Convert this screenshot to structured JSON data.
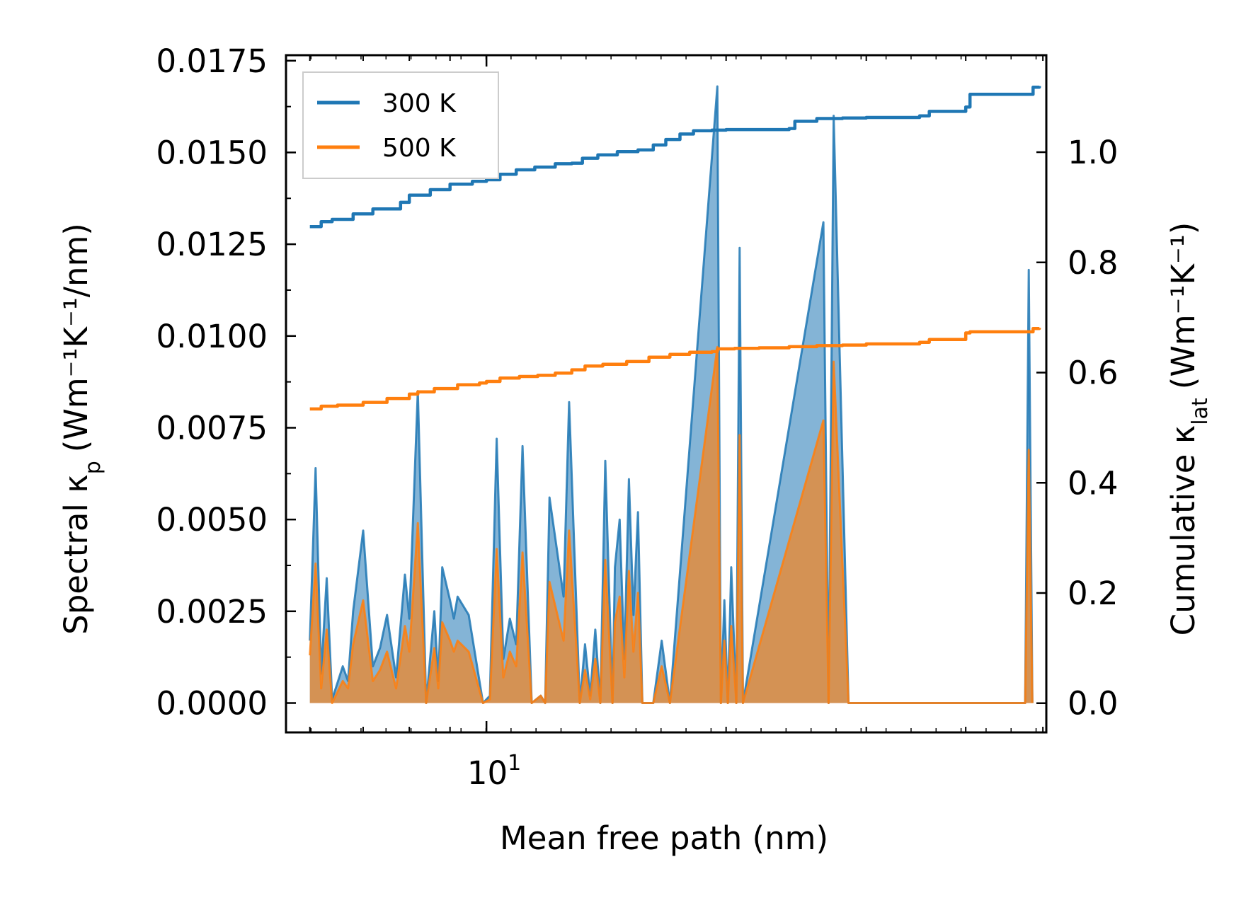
{
  "chart_data": {
    "type": "line",
    "title": "",
    "xlabel": "Mean free path (nm)",
    "xscale": "log",
    "xlim": [
      5.6,
      50.5
    ],
    "xticks": [
      {
        "value": 10,
        "label": "10",
        "exponent": "1"
      }
    ],
    "ylabel_left": {
      "main": "Spectral κ",
      "sub": "p",
      "unit": "(Wm⁻¹K⁻¹/nm)"
    },
    "ylim_left": [
      -0.0008,
      0.01765
    ],
    "yticks_left": [
      "0.0000",
      "0.0025",
      "0.0050",
      "0.0075",
      "0.0100",
      "0.0125",
      "0.0150",
      "0.0175"
    ],
    "ylabel_right": {
      "main": "Cumulative κ",
      "sub": "lat",
      "unit": "(Wm⁻¹K⁻¹)"
    },
    "ylim_right": [
      -0.053,
      1.176
    ],
    "yticks_right": [
      "0.0",
      "0.2",
      "0.4",
      "0.6",
      "0.8",
      "1.0"
    ],
    "legend": {
      "position": "top-left",
      "entries": [
        {
          "label": "300 K",
          "color": "#1f77b4"
        },
        {
          "label": "500 K",
          "color": "#ff7f0e"
        }
      ]
    },
    "series": [
      {
        "name": "300 K",
        "color": "#1f77b4",
        "cumulative": {
          "x": [
            6.0,
            6.2,
            6.4,
            6.8,
            7.2,
            7.8,
            8.0,
            8.5,
            9.0,
            9.6,
            10.0,
            10.4,
            10.9,
            11.5,
            12.2,
            12.8,
            13.2,
            13.8,
            14.6,
            15.5,
            16.2,
            16.8,
            17.5,
            18.2,
            19.2,
            20.0,
            24.0,
            24.4,
            26.0,
            28.0,
            30.0,
            35.0,
            36.0,
            40.0,
            40.5,
            48.0,
            48.6,
            49.5
          ],
          "y": [
            0.865,
            0.874,
            0.878,
            0.888,
            0.897,
            0.909,
            0.922,
            0.932,
            0.942,
            0.947,
            0.95,
            0.96,
            0.968,
            0.973,
            0.979,
            0.98,
            0.989,
            0.995,
            1.001,
            1.004,
            1.013,
            1.023,
            1.033,
            1.039,
            1.04,
            1.041,
            1.043,
            1.056,
            1.061,
            1.062,
            1.063,
            1.066,
            1.074,
            1.082,
            1.105,
            1.105,
            1.118,
            1.12
          ]
        },
        "spectral": {
          "x": [
            6.0,
            6.1,
            6.2,
            6.3,
            6.4,
            6.6,
            6.7,
            6.8,
            7.0,
            7.2,
            7.35,
            7.5,
            7.7,
            7.9,
            8.0,
            8.2,
            8.4,
            8.6,
            8.7,
            8.8,
            9.0,
            9.1,
            9.2,
            9.5,
            9.9,
            10.1,
            10.3,
            10.5,
            10.7,
            10.9,
            11.1,
            11.4,
            11.7,
            11.85,
            12.0,
            12.5,
            12.7,
            13.1,
            13.3,
            13.5,
            13.7,
            13.9,
            14.1,
            14.4,
            14.5,
            14.7,
            14.9,
            15.1,
            15.3,
            15.5,
            15.7,
            15.9,
            16.2,
            16.6,
            17.0,
            19.5,
            19.7,
            19.9,
            20.1,
            20.3,
            20.6,
            20.8,
            21.0,
            26.5,
            26.9,
            27.3,
            28.5,
            29.5,
            29.8,
            30.5,
            31.0,
            31.5,
            32.0,
            32.5,
            33.0,
            35.5,
            36.0,
            36.5,
            37.0,
            47.5,
            48.0,
            48.5
          ],
          "y": [
            0.0017,
            0.0064,
            0.0008,
            0.0034,
            0.0001,
            0.001,
            0.0006,
            0.0025,
            0.0047,
            0.001,
            0.0015,
            0.0024,
            0.0007,
            0.0035,
            0.0023,
            0.0085,
            0.0,
            0.0025,
            0.0006,
            0.0037,
            0.0028,
            0.0023,
            0.0029,
            0.0024,
            0.0,
            0.0002,
            0.0072,
            0.0012,
            0.0023,
            0.0016,
            0.007,
            0.0,
            0.0002,
            0.0,
            0.0056,
            0.0029,
            0.0082,
            0.0,
            0.0016,
            0.0002,
            0.002,
            0.0,
            0.0066,
            0.0,
            0.0037,
            0.005,
            0.0012,
            0.0061,
            0.0024,
            0.0052,
            0.0,
            0.0,
            0.0,
            0.0017,
            0.0,
            0.0168,
            0.0,
            0.0028,
            0.0,
            0.0037,
            0.0,
            0.0124,
            0.0,
            0.0131,
            0.0,
            0.016,
            0.0,
            0.0,
            0.0,
            0.0,
            0.0,
            0.0,
            0.0,
            0.0,
            0.0,
            0.0,
            0.0,
            0.0,
            0.0,
            0.0,
            0.0118,
            0.0
          ]
        }
      },
      {
        "name": "500 K",
        "color": "#ff7f0e",
        "cumulative": {
          "x": [
            6.0,
            6.2,
            6.5,
            7.0,
            7.5,
            8.0,
            8.2,
            8.6,
            9.2,
            9.8,
            10.0,
            10.4,
            11.0,
            11.6,
            12.2,
            12.8,
            13.3,
            14.0,
            15.0,
            16.0,
            17.0,
            18.0,
            19.2,
            19.5,
            20.5,
            22.0,
            24.0,
            26.0,
            28.0,
            30.0,
            35.0,
            36.0,
            40.0,
            40.5,
            48.0,
            48.6,
            49.5
          ],
          "y": [
            0.534,
            0.539,
            0.541,
            0.546,
            0.553,
            0.561,
            0.565,
            0.571,
            0.578,
            0.581,
            0.584,
            0.59,
            0.593,
            0.595,
            0.599,
            0.605,
            0.612,
            0.615,
            0.62,
            0.628,
            0.633,
            0.637,
            0.638,
            0.643,
            0.644,
            0.645,
            0.647,
            0.649,
            0.65,
            0.652,
            0.655,
            0.66,
            0.672,
            0.674,
            0.674,
            0.68,
            0.681
          ]
        },
        "spectral": {
          "x": [
            6.0,
            6.1,
            6.2,
            6.3,
            6.4,
            6.6,
            6.7,
            6.8,
            7.0,
            7.2,
            7.35,
            7.5,
            7.7,
            7.9,
            8.0,
            8.2,
            8.4,
            8.6,
            8.7,
            8.8,
            9.0,
            9.1,
            9.2,
            9.5,
            9.9,
            10.1,
            10.3,
            10.5,
            10.7,
            10.9,
            11.1,
            11.4,
            11.7,
            11.85,
            12.0,
            12.5,
            12.7,
            13.1,
            13.3,
            13.5,
            13.7,
            13.9,
            14.1,
            14.4,
            14.5,
            14.7,
            14.9,
            15.1,
            15.3,
            15.5,
            15.7,
            15.9,
            16.2,
            16.6,
            17.0,
            19.5,
            19.7,
            19.9,
            20.1,
            20.3,
            20.6,
            20.8,
            21.0,
            26.5,
            26.9,
            27.3,
            28.5,
            29.5,
            29.8,
            30.5,
            31.0,
            31.5,
            32.0,
            32.5,
            33.0,
            35.5,
            36.0,
            36.5,
            37.0,
            47.5,
            48.0,
            48.5
          ],
          "y": [
            0.0013,
            0.0038,
            0.0004,
            0.002,
            0.0,
            0.0006,
            0.0004,
            0.0016,
            0.0028,
            0.0006,
            0.0009,
            0.0014,
            0.0004,
            0.0021,
            0.0014,
            0.0049,
            0.0,
            0.0015,
            0.0004,
            0.0022,
            0.0017,
            0.0014,
            0.0017,
            0.0014,
            0.0,
            0.0001,
            0.0042,
            0.0007,
            0.0014,
            0.001,
            0.0041,
            0.0,
            0.0002,
            0.0,
            0.0033,
            0.0017,
            0.0047,
            0.0,
            0.0009,
            0.0001,
            0.0012,
            0.0,
            0.0039,
            0.0,
            0.0022,
            0.0029,
            0.0007,
            0.0036,
            0.0014,
            0.003,
            0.0,
            0.0,
            0.0,
            0.001,
            0.0,
            0.0097,
            0.0,
            0.0017,
            0.0,
            0.0021,
            0.0,
            0.0073,
            0.0,
            0.0077,
            0.0,
            0.0093,
            0.0,
            0.0,
            0.0,
            0.0,
            0.0,
            0.0,
            0.0,
            0.0,
            0.0,
            0.0,
            0.0,
            0.0,
            0.0,
            0.0,
            0.0069,
            0.0
          ]
        }
      }
    ]
  }
}
